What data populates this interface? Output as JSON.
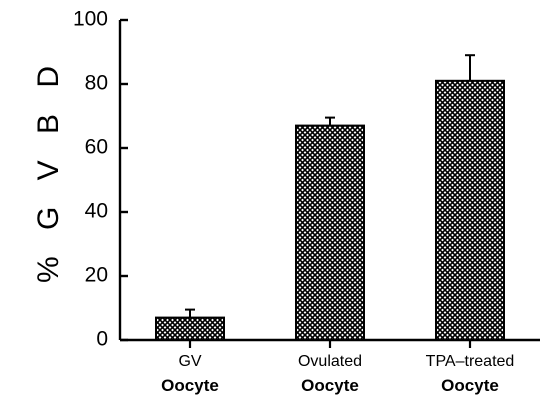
{
  "chart_data": {
    "type": "bar",
    "title": "",
    "xlabel": "",
    "ylabel": "% G V B D",
    "ylim": [
      0,
      100
    ],
    "yticks": [
      "0",
      "20",
      "40",
      "60",
      "80",
      "100"
    ],
    "categories": [
      {
        "line1": "GV",
        "line2": "Oocyte"
      },
      {
        "line1": "Ovulated",
        "line2": "Oocyte"
      },
      {
        "line1": "TPA–treated",
        "line2": "Oocyte"
      }
    ],
    "values": [
      7,
      67,
      81
    ],
    "errors": [
      2.5,
      2.5,
      8
    ],
    "grid": false,
    "bar_fill": "crosshatch",
    "colors": {
      "bar_fill": "#ffffff",
      "hatch": "#000000",
      "axis": "#000000"
    }
  }
}
